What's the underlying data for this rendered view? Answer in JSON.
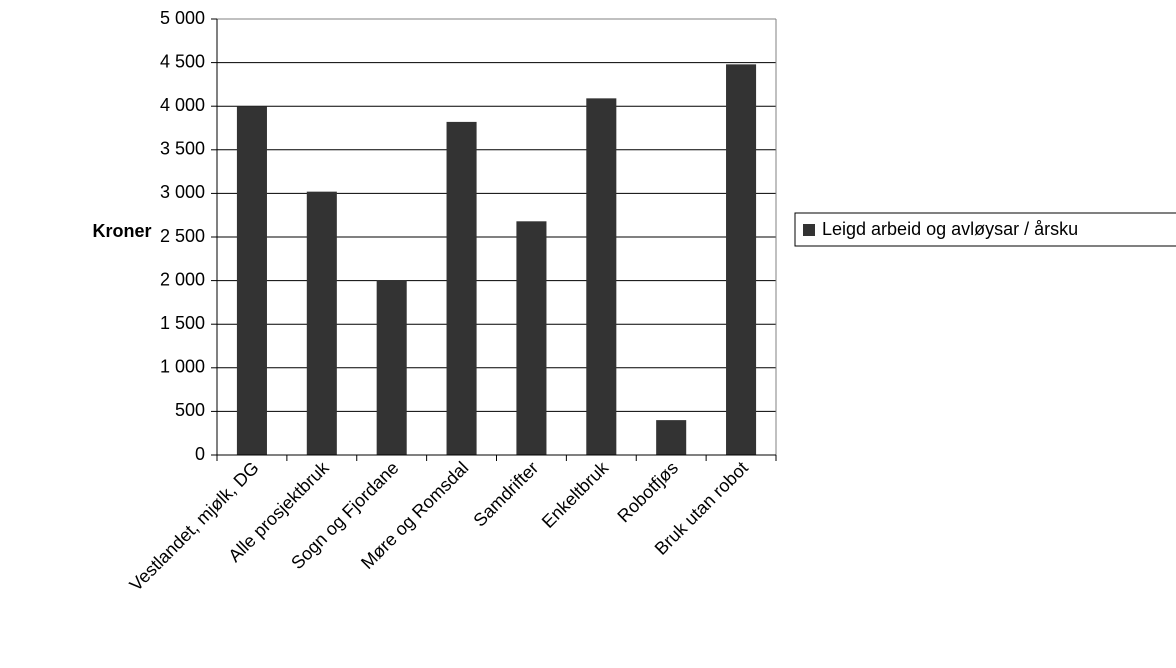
{
  "chart_data": {
    "type": "bar",
    "ylabel": "Kroner",
    "xlabel": "",
    "ylim": [
      0,
      5000
    ],
    "ytick_step": 500,
    "ytick_labels": [
      "0",
      "500",
      "1 000",
      "1 500",
      "2 000",
      "2 500",
      "3 000",
      "3 500",
      "4 000",
      "4 500",
      "5 000"
    ],
    "categories": [
      "Vestlandet, mjølk, DG",
      "Alle prosjektbruk",
      "Sogn og Fjordane",
      "Møre og Romsdal",
      "Samdrifter",
      "Enkeltbruk",
      "Robotfjøs",
      "Bruk utan robot"
    ],
    "series": [
      {
        "name": "Leigd arbeid og avløysar / årsku",
        "color": "#333333",
        "values": [
          4000,
          3020,
          2000,
          3820,
          2680,
          4090,
          400,
          4480
        ]
      }
    ],
    "grid": true,
    "legend_position": "right"
  }
}
